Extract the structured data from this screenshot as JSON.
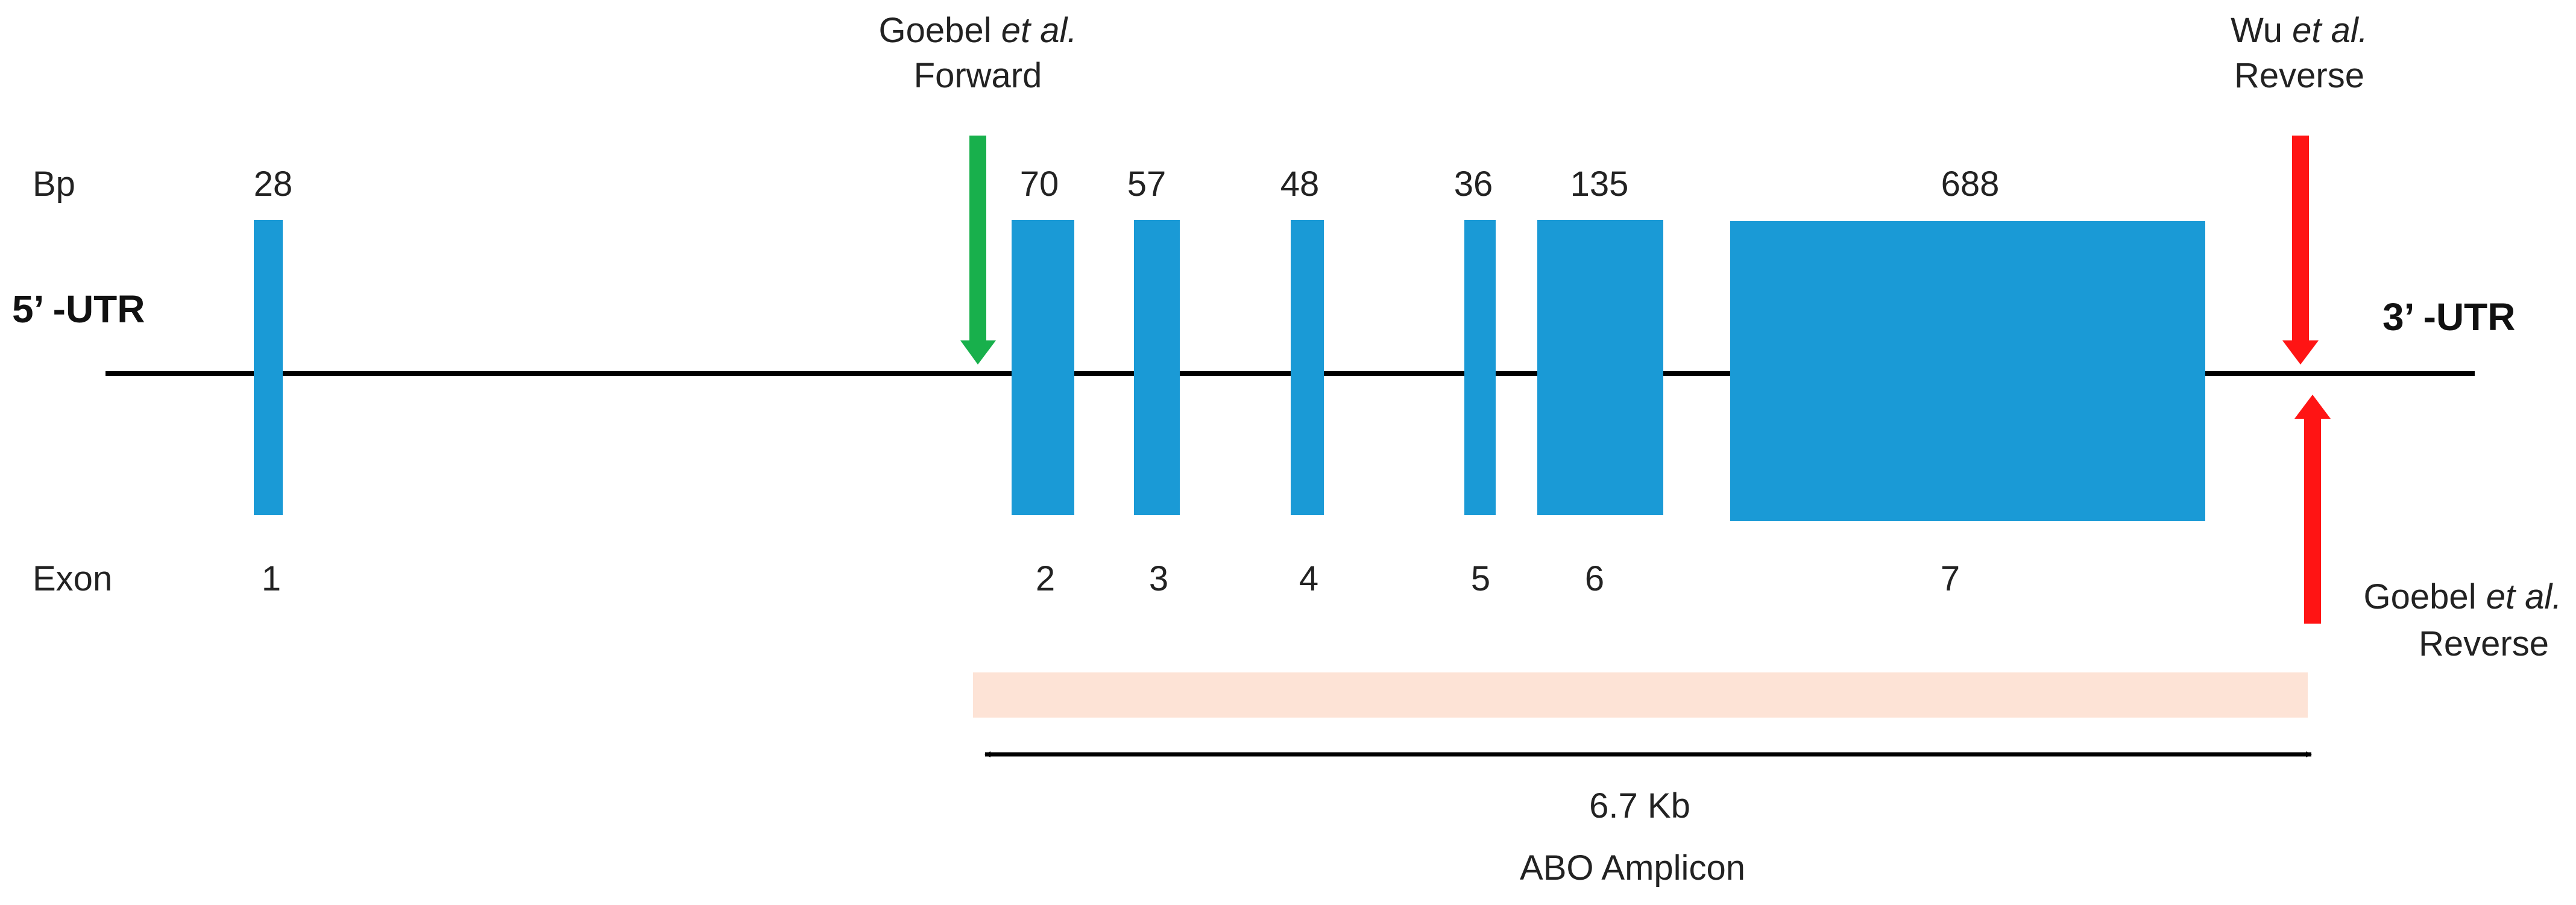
{
  "row_labels": {
    "bp": "Bp",
    "exon": "Exon"
  },
  "utr": {
    "five_prime": "5’ -UTR",
    "three_prime": "3’ -UTR"
  },
  "exons": [
    {
      "number": "1",
      "bp": "28"
    },
    {
      "number": "2",
      "bp": "70"
    },
    {
      "number": "3",
      "bp": "57"
    },
    {
      "number": "4",
      "bp": "48"
    },
    {
      "number": "5",
      "bp": "36"
    },
    {
      "number": "6",
      "bp": "135"
    },
    {
      "number": "7",
      "bp": "688"
    }
  ],
  "primers": {
    "goebel_forward": {
      "author": "Goebel ",
      "etal": "et al.",
      "direction": "Forward"
    },
    "wu_reverse": {
      "author": "Wu ",
      "etal": "et al.",
      "direction": "Reverse"
    },
    "goebel_reverse": {
      "author": "Goebel ",
      "etal": "et al.",
      "direction": "Reverse"
    }
  },
  "amplicon": {
    "size": "6.7 Kb",
    "label": "ABO Amplicon"
  },
  "colors": {
    "exon": "#1a9ad6",
    "forward_primer": "#18b04c",
    "reverse_primer": "#ff1414",
    "amplicon_band": "#fde3d6",
    "backbone": "#000000"
  }
}
